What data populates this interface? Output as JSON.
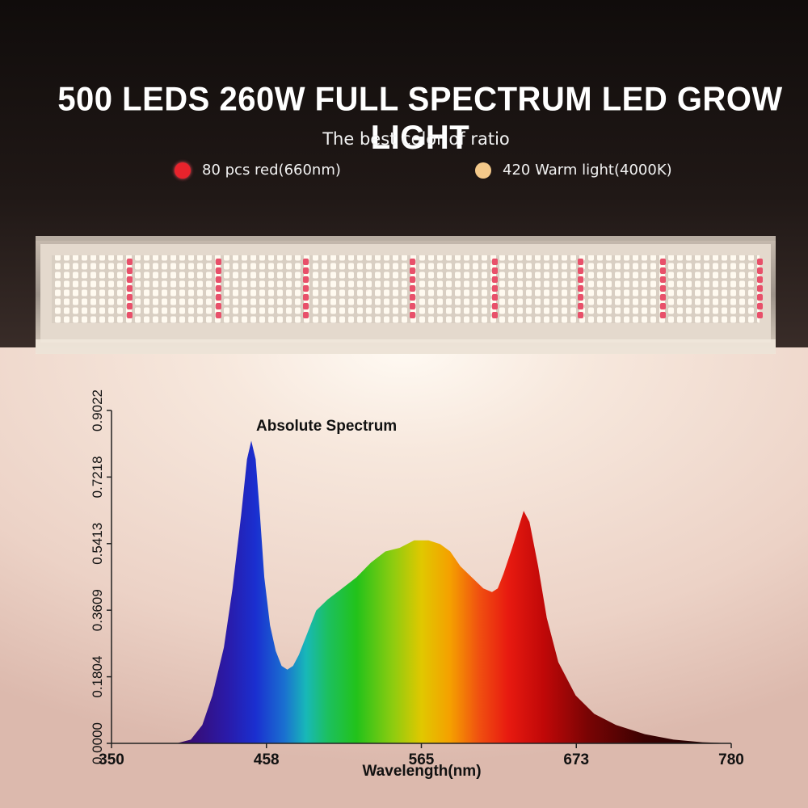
{
  "header": {
    "title": "500 LEDS 260W FULL SPECTRUM LED GROW LIGHT",
    "subtitle": "The best color of ratio"
  },
  "legend": [
    {
      "label": "80 pcs red(660nm)",
      "color": "#e8232c"
    },
    {
      "label": "420 Warm light(4000K)",
      "color": "#f4c98a"
    }
  ],
  "chart_data": {
    "type": "area",
    "title": "Absolute Spectrum",
    "xlabel": "Wavelength(nm)",
    "ylabel": "",
    "xlim": [
      350,
      780
    ],
    "ylim": [
      0,
      0.9022
    ],
    "x_ticks": [
      "350",
      "458",
      "565",
      "673",
      "780"
    ],
    "y_ticks": [
      "0.0000",
      "0.1804",
      "0.3609",
      "0.5413",
      "0.7218",
      "0.9022"
    ],
    "grid": false,
    "series": [
      {
        "x": [
          350,
          395,
          405,
          413,
          420,
          428,
          434,
          440,
          444,
          447,
          450,
          453,
          456,
          460,
          464,
          468,
          472,
          476,
          480,
          486,
          492,
          500,
          510,
          520,
          530,
          540,
          550,
          560,
          565,
          570,
          578,
          585,
          592,
          600,
          608,
          614,
          618,
          622,
          628,
          632,
          636,
          640,
          646,
          652,
          660,
          672,
          685,
          700,
          720,
          740,
          760,
          780
        ],
        "y": [
          0,
          0,
          0.01,
          0.05,
          0.13,
          0.26,
          0.42,
          0.62,
          0.77,
          0.82,
          0.77,
          0.62,
          0.45,
          0.32,
          0.25,
          0.21,
          0.2,
          0.21,
          0.24,
          0.3,
          0.36,
          0.39,
          0.42,
          0.45,
          0.49,
          0.52,
          0.53,
          0.55,
          0.55,
          0.55,
          0.54,
          0.52,
          0.48,
          0.45,
          0.42,
          0.41,
          0.42,
          0.46,
          0.53,
          0.58,
          0.63,
          0.6,
          0.48,
          0.34,
          0.22,
          0.13,
          0.08,
          0.05,
          0.025,
          0.01,
          0.003,
          0
        ]
      }
    ]
  }
}
